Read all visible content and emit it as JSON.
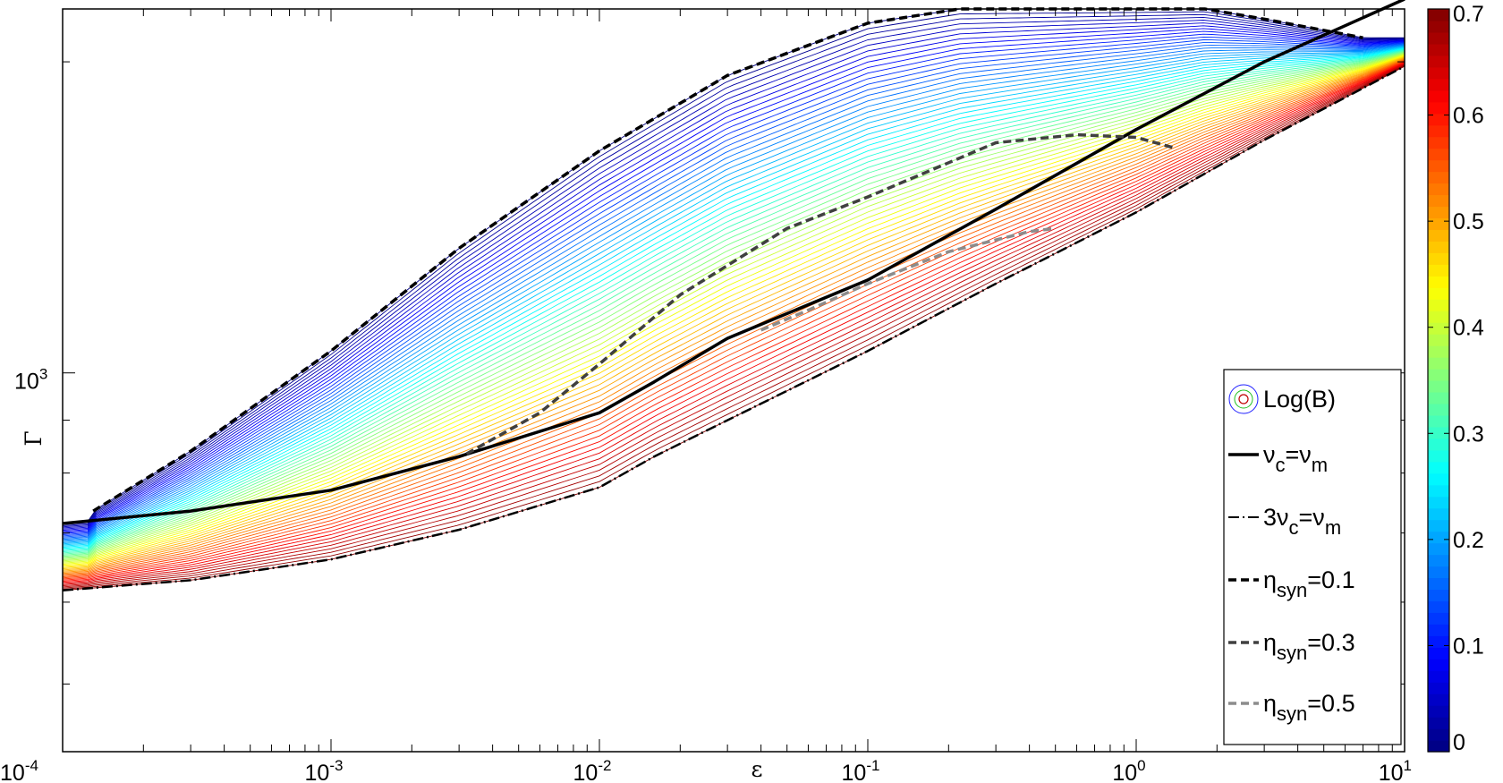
{
  "chart_data": {
    "type": "line",
    "title": "",
    "xlabel": "ε",
    "ylabel": "Γ",
    "xscale": "log",
    "yscale": "log",
    "xlim": [
      0.0001,
      10
    ],
    "ylim": [
      430,
      2250
    ],
    "x_tick_labels": [
      {
        "base": "10",
        "exp": "-4"
      },
      {
        "base": "10",
        "exp": "-3"
      },
      {
        "base": "10",
        "exp": "-2"
      },
      {
        "base": "10",
        "exp": "-1"
      },
      {
        "base": "10",
        "exp": "0"
      },
      {
        "base": "10",
        "exp": "1"
      }
    ],
    "y_tick_labels": [
      {
        "base": "10",
        "exp": "3"
      }
    ],
    "colorbar": {
      "min": 0,
      "max": 0.7,
      "ticks": [
        "0",
        "0.1",
        "0.2",
        "0.3",
        "0.4",
        "0.5",
        "0.6",
        "0.7"
      ],
      "colormap": "jet"
    },
    "contour_field": {
      "name": "Log(B)",
      "levels": 60,
      "range": [
        0,
        0.7
      ]
    },
    "legend": {
      "placement": "lower-right",
      "entries": [
        {
          "main": "Log(B)",
          "style": "contour"
        },
        {
          "main": "ν",
          "sub": "c",
          "mid": "=ν",
          "sub2": "m",
          "style": "solid",
          "color": "#000000"
        },
        {
          "main": "3ν",
          "sub": "c",
          "mid": "=ν",
          "sub2": "m",
          "style": "dashdot",
          "color": "#000000"
        },
        {
          "main": "η",
          "sub": "syn",
          "mid": "=0.1",
          "style": "dashed",
          "color": "#000000"
        },
        {
          "main": "η",
          "sub": "syn",
          "mid": "=0.3",
          "style": "dashed",
          "color": "#404040"
        },
        {
          "main": "η",
          "sub": "syn",
          "mid": "=0.5",
          "style": "dashed",
          "color": "#8c8c8c"
        }
      ]
    },
    "series": [
      {
        "name": "νc=νm",
        "style": "solid",
        "x": [
          0.0001,
          0.0003,
          0.001,
          0.003,
          0.01,
          0.016,
          0.03,
          0.1,
          0.3,
          1,
          3,
          10
        ],
        "y": [
          715,
          735,
          770,
          830,
          915,
          980,
          1080,
          1230,
          1440,
          1720,
          2000,
          2300
        ]
      },
      {
        "name": "3νc=νm",
        "style": "dashdot",
        "x": [
          0.0001,
          0.0003,
          0.001,
          0.003,
          0.01,
          0.016,
          0.03,
          0.1,
          0.3,
          1,
          3,
          10
        ],
        "y": [
          616,
          630,
          660,
          705,
          775,
          830,
          900,
          1050,
          1220,
          1430,
          1680,
          1980
        ]
      },
      {
        "name": "ηsyn=0.1",
        "style": "dashed",
        "x": [
          0.00013,
          0.0003,
          0.001,
          0.003,
          0.01,
          0.03,
          0.1,
          0.22,
          0.5,
          1,
          1.8,
          3,
          7
        ],
        "y": [
          735,
          840,
          1050,
          1320,
          1640,
          1940,
          2180,
          2250,
          2250,
          2250,
          2250,
          2200,
          2110
        ]
      },
      {
        "name": "ηsyn=0.3",
        "style": "dashed",
        "x": [
          0.0032,
          0.006,
          0.01,
          0.02,
          0.05,
          0.1,
          0.3,
          0.6,
          1,
          1.4
        ],
        "y": [
          835,
          915,
          1020,
          1190,
          1380,
          1480,
          1670,
          1700,
          1690,
          1650
        ]
      },
      {
        "name": "ηsyn=0.5",
        "style": "dashed",
        "x": [
          0.04,
          0.06,
          0.1,
          0.2,
          0.4,
          0.5
        ],
        "y": [
          1100,
          1150,
          1220,
          1310,
          1370,
          1380
        ]
      }
    ]
  }
}
